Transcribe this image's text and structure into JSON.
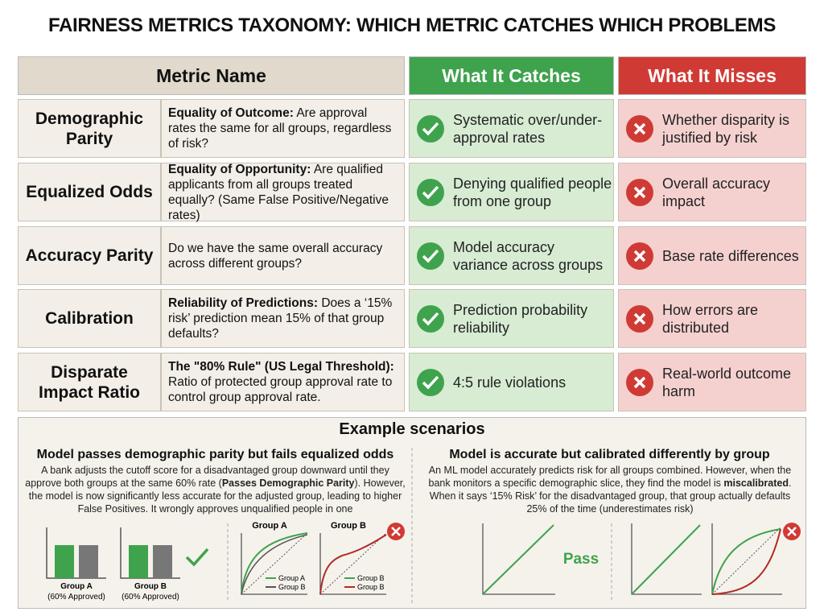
{
  "title": "FAIRNESS METRICS TAXONOMY: WHICH METRIC CATCHES WHICH PROBLEMS",
  "table": {
    "headers": [
      "Metric Name",
      "What It Catches",
      "What It Misses"
    ],
    "rows": [
      {
        "name": "Demographic Parity",
        "lead": "Equality of Outcome:",
        "text": "Are approval rates the same for all groups, regardless of risk?",
        "catches": "Systematic over/under-approval rates",
        "misses": "Whether disparity is justified by risk"
      },
      {
        "name": "Equalized Odds",
        "lead": "Equality of Opportunity:",
        "text": "Are qualified applicants from all groups treated equally? (Same False Positive/Negative rates)",
        "catches": "Denying qualified people from one group",
        "misses": "Overall accuracy impact"
      },
      {
        "name": "Accuracy Parity",
        "text": "Do we have the same overall accuracy across different groups?",
        "catches": "Model accuracy variance across groups",
        "misses": "Base rate differences"
      },
      {
        "name": "Calibration",
        "lead": "Reliability of Predictions:",
        "text": "Does a ‘15% risk’ prediction mean 15% of that group defaults?",
        "catches": "Prediction probability reliability",
        "misses": "How errors are distributed"
      },
      {
        "name": "Disparate Impact Ratio",
        "lead": "The \"80% Rule\" (US Legal Threshold):",
        "text": "Ratio of protected group approval rate to control group approval rate.",
        "catches": "4:5 rule violations",
        "misses": "Real-world outcome harm"
      }
    ]
  },
  "examples": {
    "title": "Example scenarios",
    "panels": [
      {
        "heading": "Model passes demographic parity but fails equalized odds",
        "body": [
          "A bank adjusts the cutoff score for a disadvantaged group downward until they approve both groups at the same 60% rate (",
          "Passes Demographic Parity",
          "). However, the model is now significantly less accurate for the adjusted group, leading to higher False Positives. It wrongly approves unqualified people in one"
        ],
        "bar_groups": [
          {
            "label": "Group A",
            "note": "(60% Approved)"
          },
          {
            "label": "Group B",
            "note": "(60% Approved)"
          }
        ],
        "curves": [
          {
            "title": "Group A",
            "legend": [
              "Group A",
              "Group B"
            ]
          },
          {
            "title": "Group B",
            "legend": [
              "Group B",
              "Group B"
            ]
          }
        ]
      },
      {
        "heading": "Model is accurate but calibrated differently by group",
        "body": [
          "An ML model accurately predicts risk for all groups combined. However, when the bank monitors a specific demographic slice, they find the model is ",
          "miscalibrated",
          ". When it says ‘15% Risk’ for the disadvantaged group, that group actually defaults 25% of the time (underestimates risk)"
        ],
        "verdict": "Pass"
      }
    ]
  }
}
